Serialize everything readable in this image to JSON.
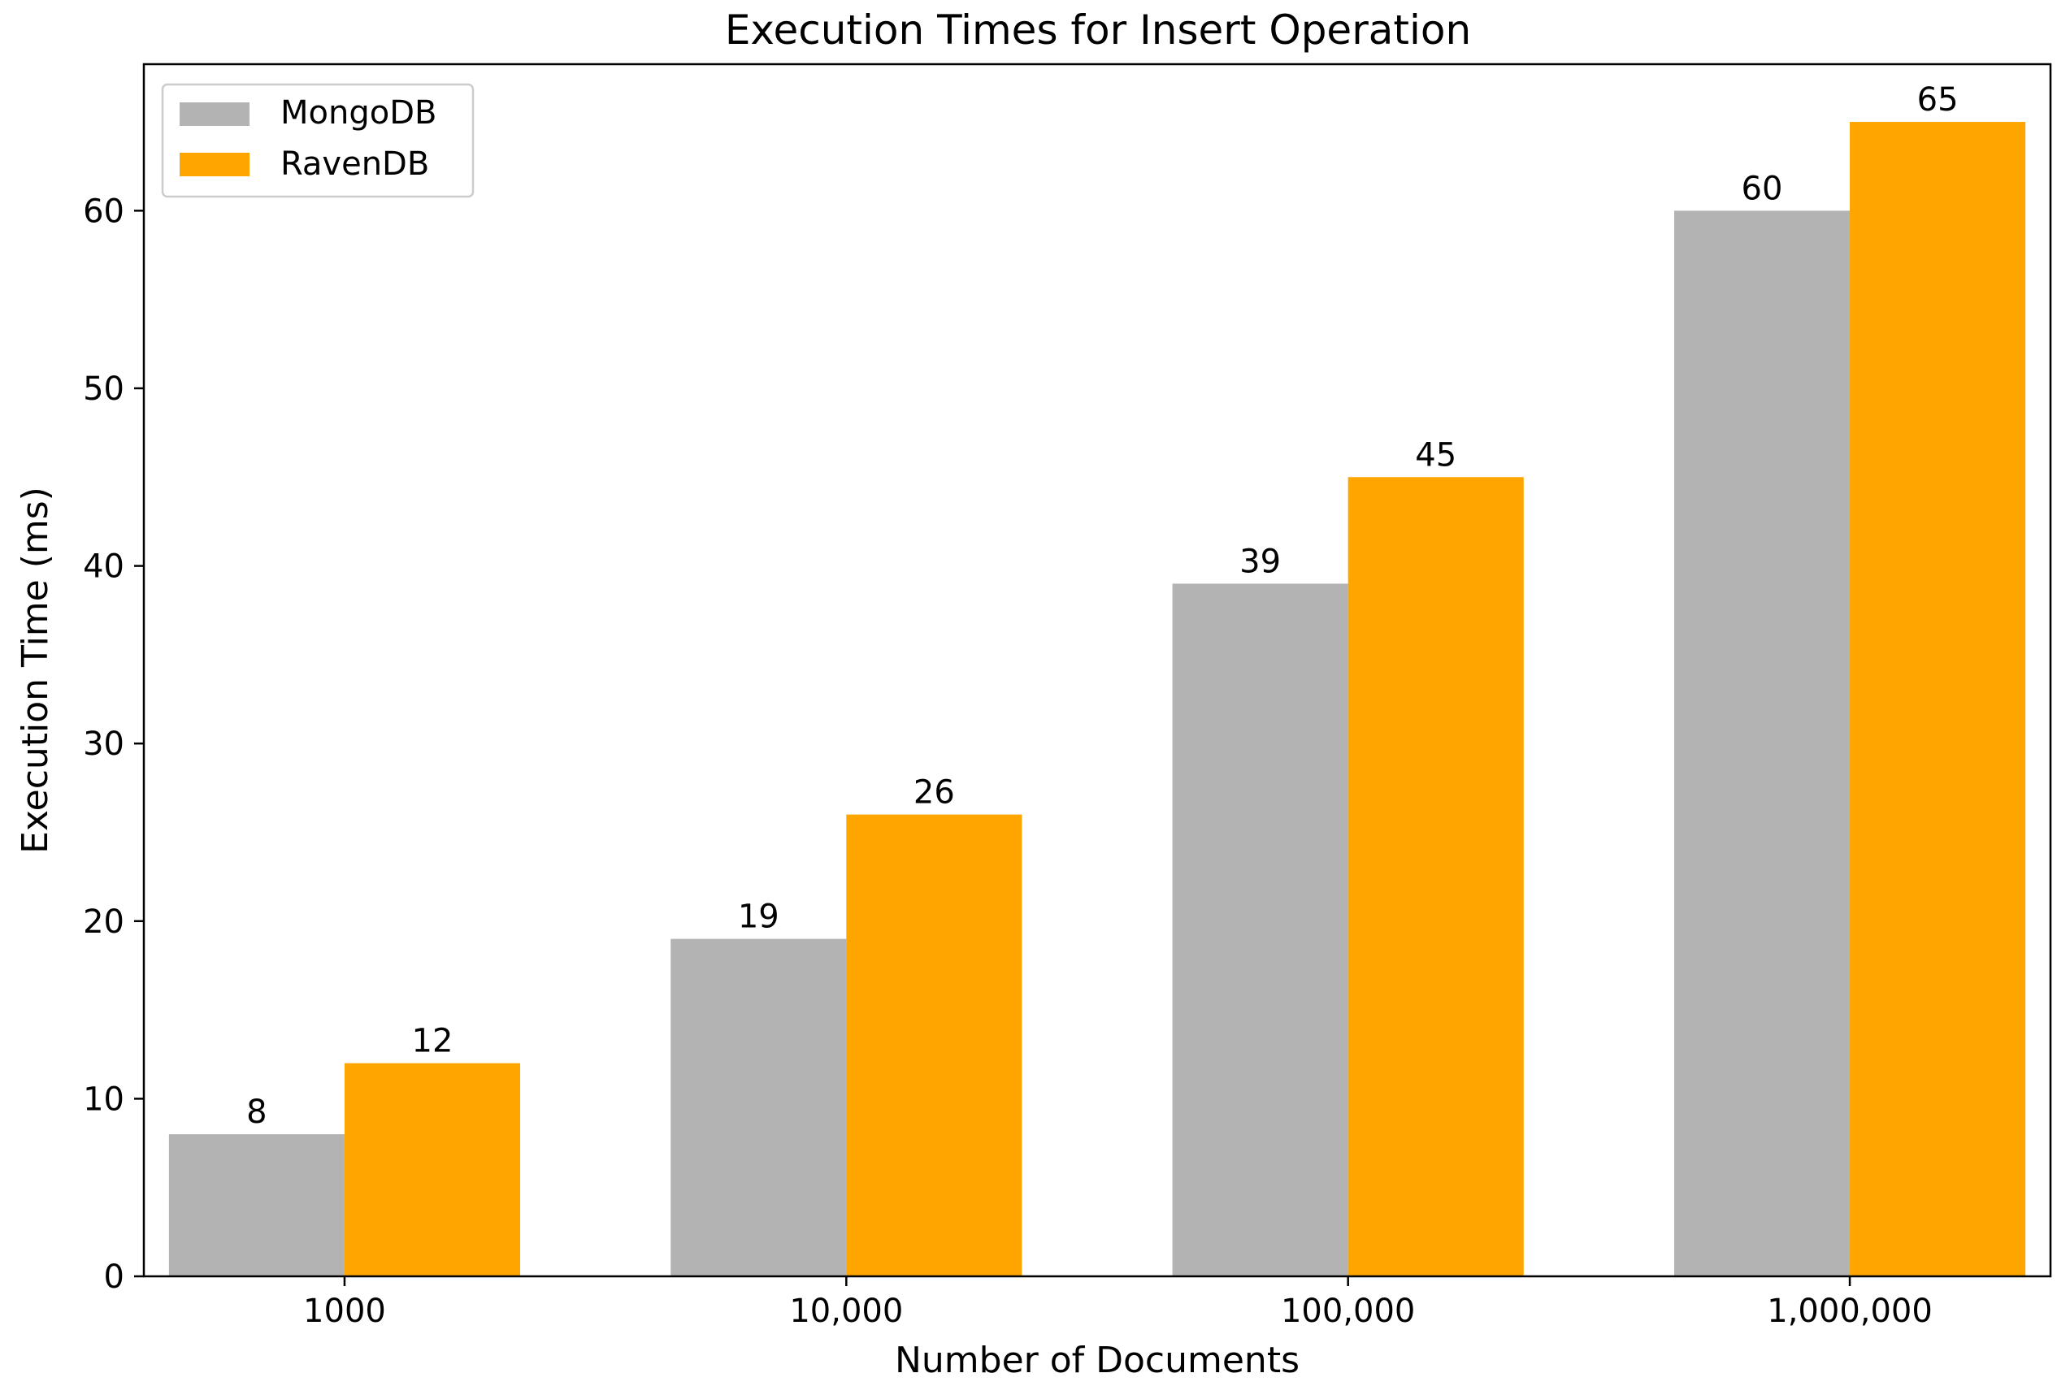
{
  "chart_data": {
    "type": "bar",
    "title": "Execution Times for Insert Operation",
    "xlabel": "Number of Documents",
    "ylabel": "Execution Time (ms)",
    "categories": [
      "1000",
      "10,000",
      "100,000",
      "1,000,000"
    ],
    "series": [
      {
        "name": "MongoDB",
        "color": "#b3b3b3",
        "values": [
          8,
          19,
          39,
          60
        ]
      },
      {
        "name": "RavenDB",
        "color": "#ffa500",
        "values": [
          12,
          26,
          45,
          65
        ]
      }
    ],
    "ylim": [
      0,
      68.25
    ],
    "yticks": [
      0,
      10,
      20,
      30,
      40,
      50,
      60
    ],
    "legend_position": "top-left",
    "grid": false,
    "data_labels": true
  }
}
